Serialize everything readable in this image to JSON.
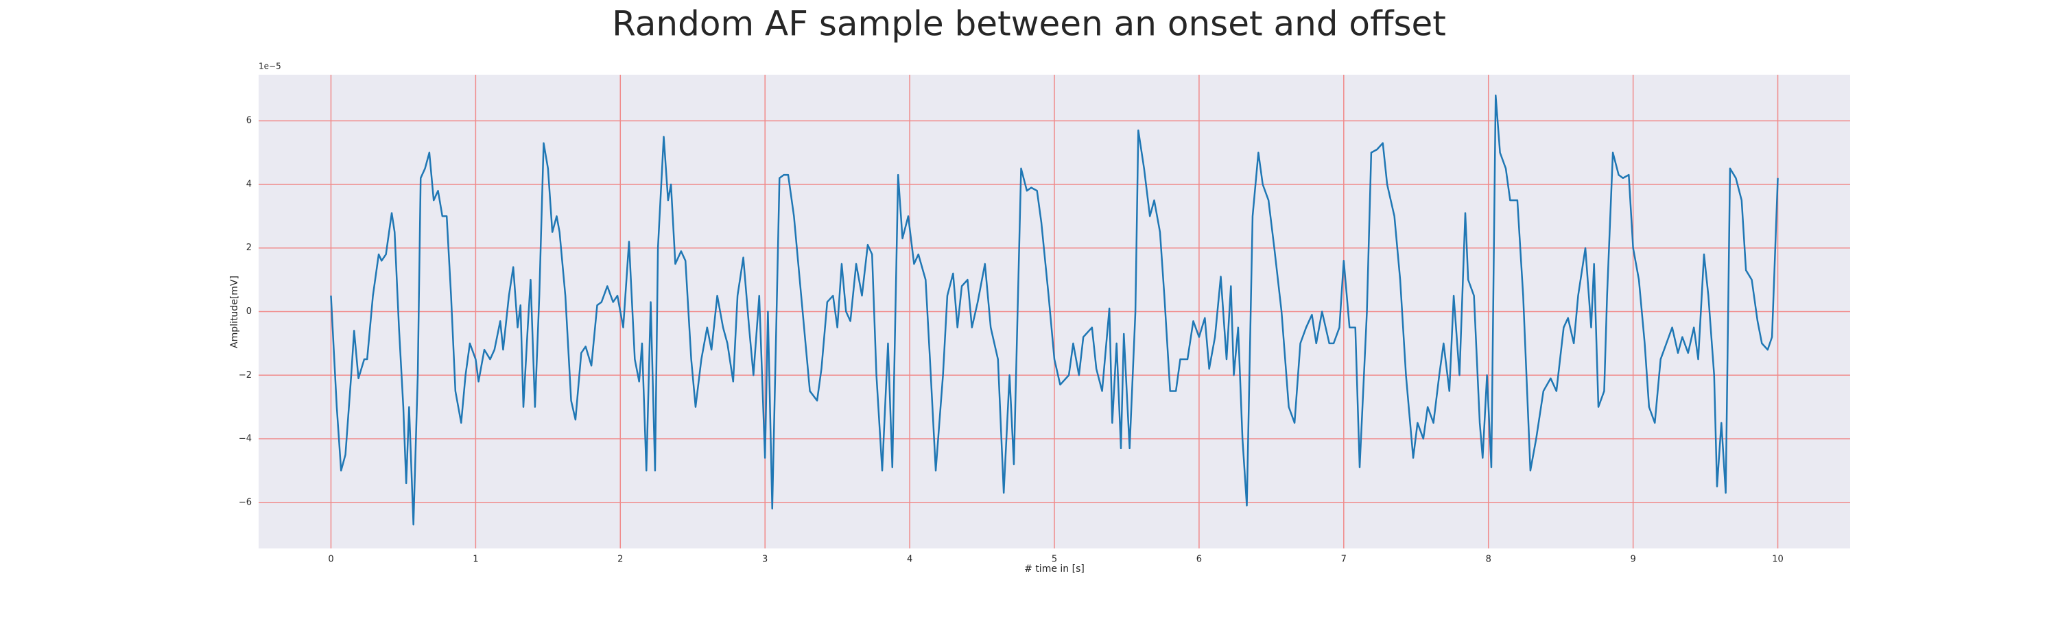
{
  "chart_data": {
    "type": "line",
    "title": "Random AF sample between an onset and offset",
    "xlabel": "# time in [s]",
    "ylabel": "Amplitude[mV]",
    "y_offset_label": "1e−5",
    "color": "#1f77b4",
    "grid": true,
    "grid_color": "#f08a8a",
    "background": "#eaeaf2",
    "xlim": [
      -0.5,
      10.5
    ],
    "ylim": [
      -7.45,
      7.45
    ],
    "xticks": [
      0,
      1,
      2,
      3,
      4,
      5,
      6,
      7,
      8,
      9,
      10
    ],
    "yticks": [
      {
        "value": -6,
        "label": "−6"
      },
      {
        "value": -4,
        "label": "−4"
      },
      {
        "value": -2,
        "label": "−2"
      },
      0,
      2,
      4,
      6
    ],
    "x": [
      0,
      0.04,
      0.07,
      0.1,
      0.14,
      0.16,
      0.19,
      0.23,
      0.25,
      0.29,
      0.33,
      0.35,
      0.38,
      0.42,
      0.44,
      0.47,
      0.5,
      0.52,
      0.54,
      0.57,
      0.6,
      0.62,
      0.65,
      0.68,
      0.71,
      0.74,
      0.77,
      0.8,
      0.83,
      0.86,
      0.9,
      0.93,
      0.96,
      1,
      1.02,
      1.06,
      1.1,
      1.13,
      1.17,
      1.19,
      1.23,
      1.26,
      1.29,
      1.31,
      1.33,
      1.36,
      1.38,
      1.41,
      1.44,
      1.47,
      1.5,
      1.53,
      1.56,
      1.58,
      1.62,
      1.66,
      1.69,
      1.73,
      1.76,
      1.8,
      1.84,
      1.87,
      1.91,
      1.95,
      1.98,
      2.02,
      2.06,
      2.1,
      2.13,
      2.15,
      2.18,
      2.21,
      2.24,
      2.26,
      2.3,
      2.33,
      2.35,
      2.38,
      2.42,
      2.45,
      2.49,
      2.52,
      2.56,
      2.6,
      2.63,
      2.67,
      2.71,
      2.74,
      2.78,
      2.81,
      2.85,
      2.89,
      2.92,
      2.96,
      3,
      3.02,
      3.05,
      3.08,
      3.1,
      3.13,
      3.16,
      3.2,
      3.25,
      3.31,
      3.36,
      3.39,
      3.43,
      3.47,
      3.5,
      3.53,
      3.56,
      3.59,
      3.63,
      3.67,
      3.71,
      3.74,
      3.77,
      3.81,
      3.85,
      3.88,
      3.92,
      3.95,
      3.99,
      4.03,
      4.06,
      4.11,
      4.14,
      4.18,
      4.23,
      4.26,
      4.3,
      4.33,
      4.36,
      4.4,
      4.43,
      4.47,
      4.52,
      4.56,
      4.61,
      4.65,
      4.69,
      4.72,
      4.77,
      4.81,
      4.84,
      4.88,
      4.91,
      4.96,
      5,
      5.04,
      5.1,
      5.13,
      5.17,
      5.2,
      5.26,
      5.29,
      5.33,
      5.38,
      5.4,
      5.43,
      5.46,
      5.48,
      5.52,
      5.56,
      5.58,
      5.62,
      5.66,
      5.69,
      5.73,
      5.76,
      5.8,
      5.84,
      5.87,
      5.92,
      5.96,
      6,
      6.04,
      6.07,
      6.11,
      6.15,
      6.19,
      6.22,
      6.24,
      6.27,
      6.3,
      6.33,
      6.37,
      6.41,
      6.44,
      6.48,
      6.52,
      6.57,
      6.62,
      6.66,
      6.7,
      6.74,
      6.78,
      6.81,
      6.85,
      6.9,
      6.93,
      6.97,
      7,
      7.04,
      7.08,
      7.11,
      7.16,
      7.19,
      7.23,
      7.27,
      7.3,
      7.35,
      7.39,
      7.43,
      7.48,
      7.51,
      7.55,
      7.58,
      7.62,
      7.66,
      7.69,
      7.73,
      7.76,
      7.8,
      7.84,
      7.86,
      7.9,
      7.94,
      7.96,
      7.99,
      8.02,
      8.05,
      8.08,
      8.12,
      8.15,
      8.2,
      8.24,
      8.29,
      8.33,
      8.38,
      8.43,
      8.47,
      8.52,
      8.55,
      8.59,
      8.62,
      8.67,
      8.71,
      8.73,
      8.76,
      8.8,
      8.82,
      8.86,
      8.9,
      8.93,
      8.97,
      9,
      9.04,
      9.08,
      9.11,
      9.15,
      9.19,
      9.23,
      9.27,
      9.31,
      9.34,
      9.38,
      9.42,
      9.45,
      9.49,
      9.52,
      9.56,
      9.58,
      9.61,
      9.64,
      9.67,
      9.71,
      9.75,
      9.78,
      9.82,
      9.86,
      9.89,
      9.93,
      9.96,
      10
    ],
    "values": [
      0.5,
      -3,
      -5,
      -4.5,
      -2,
      -0.6,
      -2.1,
      -1.5,
      -1.5,
      0.5,
      1.8,
      1.6,
      1.8,
      3.1,
      2.5,
      -0.5,
      -3,
      -5.4,
      -3,
      -6.7,
      -2,
      4.2,
      4.5,
      5,
      3.5,
      3.8,
      3,
      3,
      0.5,
      -2.5,
      -3.5,
      -2,
      -1,
      -1.5,
      -2.2,
      -1.2,
      -1.5,
      -1.2,
      -0.3,
      -1.2,
      0.5,
      1.4,
      -0.5,
      0.2,
      -3,
      -0.5,
      1,
      -3,
      0.5,
      5.3,
      4.5,
      2.5,
      3,
      2.5,
      0.5,
      -2.8,
      -3.4,
      -1.3,
      -1.1,
      -1.7,
      0.2,
      0.3,
      0.8,
      0.3,
      0.5,
      -0.5,
      2.2,
      -1.5,
      -2.2,
      -1,
      -5,
      0.3,
      -5,
      2,
      5.5,
      3.5,
      4,
      1.5,
      1.9,
      1.6,
      -1.5,
      -3,
      -1.5,
      -0.5,
      -1.2,
      0.5,
      -0.5,
      -1,
      -2.2,
      0.5,
      1.7,
      -0.5,
      -2,
      0.5,
      -4.6,
      0,
      -6.2,
      0,
      4.2,
      4.3,
      4.3,
      3,
      0.5,
      -2.5,
      -2.8,
      -1.8,
      0.3,
      0.5,
      -0.5,
      1.5,
      0,
      -0.3,
      1.5,
      0.5,
      2.1,
      1.8,
      -2,
      -5,
      -1,
      -4.9,
      4.3,
      2.3,
      3,
      1.5,
      1.8,
      1,
      -1.5,
      -5,
      -2,
      0.5,
      1.2,
      -0.5,
      0.8,
      1,
      -0.5,
      0.3,
      1.5,
      -0.5,
      -1.5,
      -5.7,
      -2,
      -4.8,
      4.5,
      3.8,
      3.9,
      3.8,
      2.8,
      0.5,
      -1.5,
      -2.3,
      -2,
      -1,
      -2,
      -0.8,
      -0.5,
      -1.8,
      -2.5,
      0.1,
      -3.5,
      -1,
      -4.3,
      -0.7,
      -4.3,
      0,
      5.7,
      4.5,
      3,
      3.5,
      2.5,
      0.5,
      -2.5,
      -2.5,
      -1.5,
      -1.5,
      -0.3,
      -0.8,
      -0.2,
      -1.8,
      -0.8,
      1.1,
      -1.5,
      0.8,
      -2,
      -0.5,
      -4,
      -6.1,
      3,
      5,
      4,
      3.5,
      2,
      0,
      -3,
      -3.5,
      -1,
      -0.5,
      -0.1,
      -1,
      0,
      -1,
      -1,
      -0.5,
      1.6,
      -0.5,
      -0.5,
      -4.9,
      0,
      5,
      5.1,
      5.3,
      4,
      3,
      1,
      -2,
      -4.6,
      -3.5,
      -4,
      -3,
      -3.5,
      -2,
      -1,
      -2.5,
      0.5,
      -2,
      3.1,
      1,
      0.5,
      -3.5,
      -4.6,
      -2,
      -4.9,
      6.8,
      5,
      4.5,
      3.5,
      3.5,
      0.5,
      -5,
      -4,
      -2.5,
      -2.1,
      -2.5,
      -0.5,
      -0.2,
      -1,
      0.5,
      2,
      -0.5,
      1.5,
      -3,
      -2.5,
      0.5,
      5,
      4.3,
      4.2,
      4.3,
      2,
      1,
      -1,
      -3,
      -3.5,
      -1.5,
      -1,
      -0.5,
      -1.3,
      -0.8,
      -1.3,
      -0.5,
      -1.5,
      1.8,
      0.5,
      -2,
      -5.5,
      -3.5,
      -5.7,
      4.5,
      4.2,
      3.5,
      1.3,
      1,
      -0.3,
      -1,
      -1.2,
      -0.8,
      4.2
    ]
  }
}
